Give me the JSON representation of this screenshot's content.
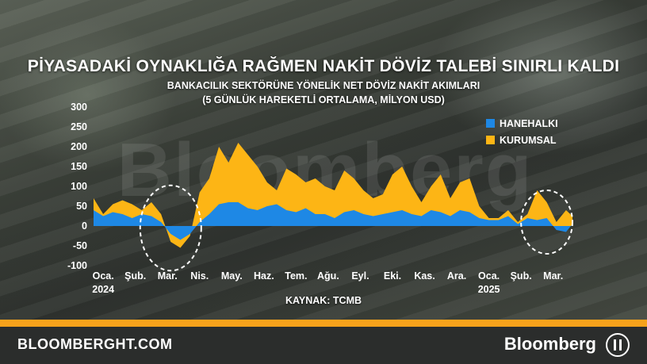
{
  "header": {
    "title": "PİYASADAKİ OYNAKLIĞA RAĞMEN NAKİT DÖVİZ TALEBİ SINIRLI KALDI",
    "subtitle_line1": "BANKACILIK SEKTÖRÜNE YÖNELİK NET DÖVİZ NAKİT AKIMLARI",
    "subtitle_line2": "(5 GÜNLÜK HAREKETLİ ORTALAMA, MİLYON USD)"
  },
  "watermark": "Bloomberg",
  "source": "KAYNAK: TCMB",
  "footer": {
    "url": "BLOOMBERGHT.COM",
    "brand": "Bloomberg"
  },
  "colors": {
    "household": "#1e88e5",
    "corporate": "#fdb515",
    "orange_bar": "#f7a21b",
    "footer_bg": "#2b2d2c",
    "text": "#ffffff"
  },
  "chart_data": {
    "type": "area",
    "stacked": true,
    "ylim": [
      -100,
      300
    ],
    "yticks": [
      -100,
      -50,
      0,
      50,
      100,
      150,
      200,
      250,
      300
    ],
    "x_months": [
      "Oca.",
      "Şub.",
      "Mar.",
      "Nis.",
      "May.",
      "Haz.",
      "Tem.",
      "Ağu.",
      "Eyl.",
      "Eki.",
      "Kas.",
      "Ara.",
      "Oca.",
      "Şub.",
      "Mar."
    ],
    "x_years": [
      {
        "label": "2024",
        "under_month_index": 0
      },
      {
        "label": "2025",
        "under_month_index": 12
      }
    ],
    "x_range_months": [
      -0.3,
      14.6
    ],
    "legend": {
      "placement": "right",
      "entries": [
        "HANEHALKI",
        "KURUMSAL"
      ]
    },
    "annotations": [
      {
        "type": "dashed-ellipse",
        "center_month": 2.1,
        "center_value": -5,
        "width_months": 1.9,
        "height_value": 215
      },
      {
        "type": "dashed-ellipse",
        "center_month": 13.8,
        "center_value": 10,
        "width_months": 1.6,
        "height_value": 160
      }
    ],
    "series": [
      {
        "name": "HANEHALKI",
        "color": "#1e88e5",
        "x": [
          -0.3,
          0,
          0.3,
          0.6,
          0.9,
          1.2,
          1.5,
          1.8,
          2.1,
          2.4,
          2.7,
          3,
          3.3,
          3.6,
          3.9,
          4.2,
          4.5,
          4.8,
          5.1,
          5.4,
          5.7,
          6,
          6.3,
          6.6,
          6.9,
          7.2,
          7.5,
          7.8,
          8.1,
          8.4,
          8.7,
          9,
          9.3,
          9.6,
          9.9,
          10.2,
          10.5,
          10.8,
          11.1,
          11.4,
          11.7,
          12,
          12.3,
          12.6,
          12.9,
          13.2,
          13.5,
          13.8,
          14.1,
          14.4,
          14.6
        ],
        "values": [
          40,
          25,
          35,
          30,
          20,
          30,
          25,
          10,
          -20,
          -35,
          -20,
          10,
          30,
          55,
          60,
          60,
          45,
          40,
          50,
          55,
          40,
          35,
          45,
          30,
          30,
          20,
          35,
          40,
          30,
          25,
          30,
          35,
          40,
          30,
          25,
          40,
          35,
          25,
          40,
          35,
          20,
          15,
          15,
          25,
          5,
          20,
          15,
          20,
          -10,
          -15,
          5
        ]
      },
      {
        "name": "KURUMSAL",
        "color": "#fdb515",
        "x": [
          -0.3,
          0,
          0.3,
          0.6,
          0.9,
          1.2,
          1.5,
          1.8,
          2.1,
          2.4,
          2.7,
          3,
          3.3,
          3.6,
          3.9,
          4.2,
          4.5,
          4.8,
          5.1,
          5.4,
          5.7,
          6,
          6.3,
          6.6,
          6.9,
          7.2,
          7.5,
          7.8,
          8.1,
          8.4,
          8.7,
          9,
          9.3,
          9.6,
          9.9,
          10.2,
          10.5,
          10.8,
          11.1,
          11.4,
          11.7,
          12,
          12.3,
          12.6,
          12.9,
          13.2,
          13.5,
          13.8,
          14.1,
          14.4,
          14.6
        ],
        "values": [
          70,
          30,
          55,
          65,
          55,
          40,
          60,
          30,
          -40,
          -55,
          -25,
          85,
          120,
          200,
          160,
          210,
          180,
          150,
          110,
          90,
          145,
          130,
          110,
          120,
          100,
          90,
          140,
          120,
          90,
          70,
          80,
          130,
          150,
          100,
          60,
          100,
          130,
          70,
          110,
          120,
          50,
          20,
          20,
          40,
          10,
          30,
          90,
          60,
          10,
          40,
          25
        ]
      }
    ]
  }
}
